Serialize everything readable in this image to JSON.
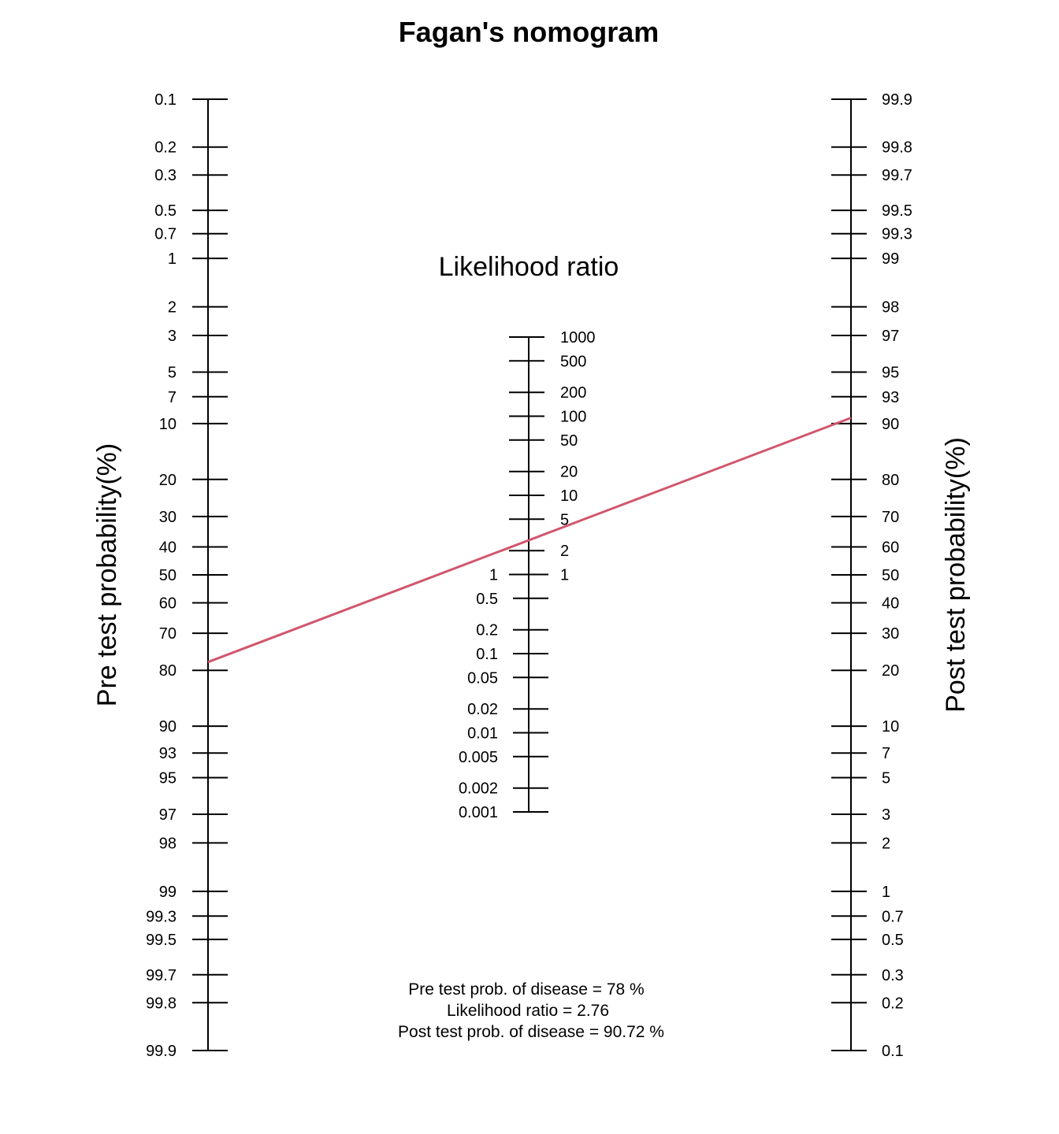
{
  "chart_data": {
    "type": "nomogram",
    "title": "Fagan's nomogram",
    "middle_label": "Likelihood ratio",
    "left_axis": {
      "label": "Pre test probability(%)",
      "ticks": [
        "0.1",
        "0.2",
        "0.3",
        "0.5",
        "0.7",
        "1",
        "2",
        "3",
        "5",
        "7",
        "10",
        "20",
        "30",
        "40",
        "50",
        "60",
        "70",
        "80",
        "90",
        "93",
        "95",
        "97",
        "98",
        "99",
        "99.3",
        "99.5",
        "99.7",
        "99.8",
        "99.9"
      ]
    },
    "right_axis": {
      "label": "Post test probability(%)",
      "ticks": [
        "99.9",
        "99.8",
        "99.7",
        "99.5",
        "99.3",
        "99",
        "98",
        "97",
        "95",
        "93",
        "90",
        "80",
        "70",
        "60",
        "50",
        "40",
        "30",
        "20",
        "10",
        "7",
        "5",
        "3",
        "2",
        "1",
        "0.7",
        "0.5",
        "0.3",
        "0.2",
        "0.1"
      ]
    },
    "lr_axis": {
      "ticks_right": [
        "1000",
        "500",
        "200",
        "100",
        "50",
        "20",
        "10",
        "5",
        "2",
        "1"
      ],
      "ticks_left": [
        "1",
        "0.5",
        "0.2",
        "0.1",
        "0.05",
        "0.02",
        "0.01",
        "0.005",
        "0.002",
        "0.001"
      ]
    },
    "line": {
      "pre_test_prob": 78,
      "likelihood_ratio": 2.76,
      "post_test_prob": 90.72,
      "color": "#d1566c"
    },
    "summary": [
      "Pre test prob. of disease = 78 %",
      "Likelihood ratio  = 2.76",
      "Post test prob. of disease = 90.72 %"
    ]
  }
}
